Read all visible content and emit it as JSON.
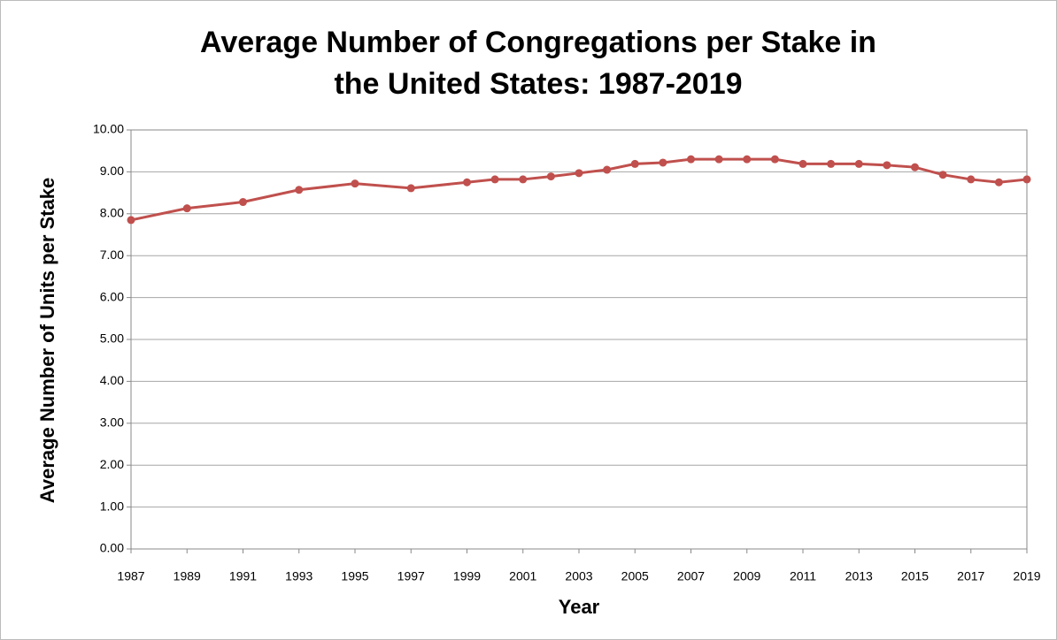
{
  "chart_data": {
    "type": "line",
    "title": [
      "Average Number of Congregations per Stake in",
      "the United States: 1987-2019"
    ],
    "x_label": "Year",
    "y_label": "Average Number of Units per Stake",
    "x": [
      1987,
      1989,
      1991,
      1993,
      1995,
      1997,
      1999,
      2000,
      2001,
      2002,
      2003,
      2004,
      2005,
      2006,
      2007,
      2008,
      2009,
      2010,
      2011,
      2012,
      2013,
      2014,
      2015,
      2016,
      2017,
      2018,
      2019
    ],
    "series": [
      {
        "name": "Average Number of Units per Stake",
        "color": "#c0504d",
        "values": [
          7.85,
          8.13,
          8.28,
          8.57,
          8.72,
          8.61,
          8.75,
          8.82,
          8.82,
          8.89,
          8.97,
          9.05,
          9.19,
          9.22,
          9.3,
          9.3,
          9.3,
          9.3,
          9.19,
          9.19,
          9.19,
          9.16,
          9.11,
          8.93,
          8.82,
          8.75,
          8.82
        ]
      }
    ],
    "xlim": [
      1987,
      2019
    ],
    "xticks": [
      1987,
      1989,
      1991,
      1993,
      1995,
      1997,
      1999,
      2001,
      2003,
      2005,
      2007,
      2009,
      2011,
      2013,
      2015,
      2017,
      2019
    ],
    "ylim": [
      0,
      10
    ],
    "yticks": [
      {
        "value": 0,
        "label": "0.00"
      },
      {
        "value": 1,
        "label": "1.00"
      },
      {
        "value": 2,
        "label": "2.00"
      },
      {
        "value": 3,
        "label": "3.00"
      },
      {
        "value": 4,
        "label": "4.00"
      },
      {
        "value": 5,
        "label": "5.00"
      },
      {
        "value": 6,
        "label": "6.00"
      },
      {
        "value": 7,
        "label": "7.00"
      },
      {
        "value": 8,
        "label": "8.00"
      },
      {
        "value": 9,
        "label": "9.00"
      },
      {
        "value": 10,
        "label": "10.00"
      }
    ],
    "grid": true
  }
}
